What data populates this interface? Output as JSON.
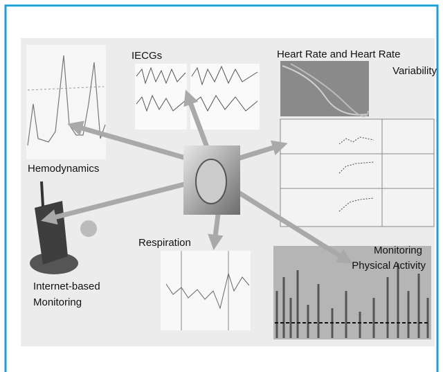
{
  "nodes": [
    {
      "label": [
        "IECGs"
      ]
    },
    {
      "label": [
        "Heart Rate and Heart Rate",
        "Variability"
      ]
    },
    {
      "label": [
        "Hemodynamics"
      ]
    },
    {
      "label": [
        "Respiration"
      ]
    },
    {
      "label": [
        "Monitoring",
        "Physical Activity"
      ]
    },
    {
      "label": [
        "Internet-based",
        "Monitoring"
      ]
    }
  ]
}
